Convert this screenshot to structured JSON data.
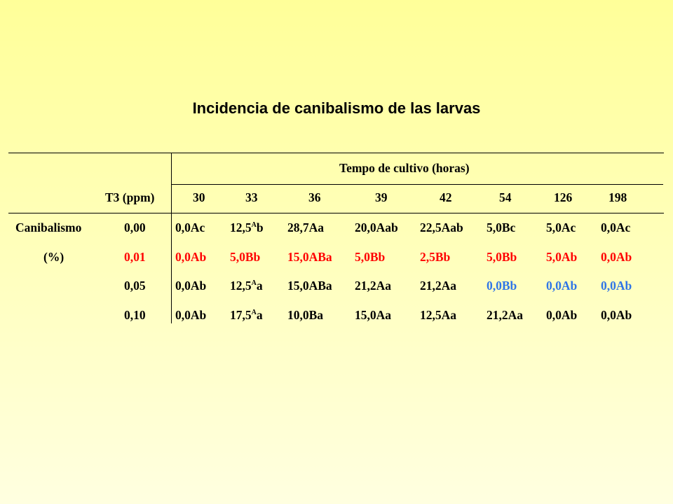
{
  "title": "Incidencia de canibalismo de las larvas",
  "colors": {
    "background_top": "#ffff99",
    "background_bottom": "#ffffe0",
    "red": "#ff0000",
    "blue": "#2f75e6"
  },
  "table": {
    "group_header": "Tempo de cultivo (horas)",
    "row_header": "T3 (ppm)",
    "columns": [
      "30",
      "33",
      "36",
      "39",
      "42",
      "54",
      "126",
      "198"
    ],
    "variable_label_1": "Canibalismo",
    "variable_label_2": "(%)",
    "rows": [
      {
        "t3": "0,00",
        "color": "black",
        "cells": [
          {
            "v": "0,0Ac"
          },
          {
            "v": "12,5",
            "sup": "A",
            "suf": "b"
          },
          {
            "v": "28,7Aa"
          },
          {
            "v": "20,0Aab"
          },
          {
            "v": "22,5Aab"
          },
          {
            "v": "5,0Bc"
          },
          {
            "v": "5,0Ac"
          },
          {
            "v": "0,0Ac"
          }
        ]
      },
      {
        "t3": "0,01",
        "color": "red",
        "cells": [
          {
            "v": "0,0Ab"
          },
          {
            "v": "5,0Bb"
          },
          {
            "v": "15,0ABa"
          },
          {
            "v": "5,0Bb"
          },
          {
            "v": "2,5Bb"
          },
          {
            "v": "5,0Bb"
          },
          {
            "v": "5,0Ab"
          },
          {
            "v": "0,0Ab"
          }
        ]
      },
      {
        "t3": "0,05",
        "color": "black",
        "cells": [
          {
            "v": "0,0Ab"
          },
          {
            "v": "12,5",
            "sup": "A",
            "suf": "a"
          },
          {
            "v": "15,0ABa"
          },
          {
            "v": "21,2Aa"
          },
          {
            "v": "21,2Aa"
          },
          {
            "v": "0,0Bb",
            "color": "blue"
          },
          {
            "v": "0,0Ab",
            "color": "blue"
          },
          {
            "v": "0,0Ab",
            "color": "blue"
          }
        ]
      },
      {
        "t3": "0,10",
        "color": "black",
        "cells": [
          {
            "v": "0,0Ab"
          },
          {
            "v": "17,5",
            "sup": "A",
            "suf": "a"
          },
          {
            "v": "10,0Ba"
          },
          {
            "v": "15,0Aa"
          },
          {
            "v": "12,5Aa"
          },
          {
            "v": "21,2Aa"
          },
          {
            "v": "0,0Ab"
          },
          {
            "v": "0,0Ab"
          }
        ]
      }
    ]
  }
}
